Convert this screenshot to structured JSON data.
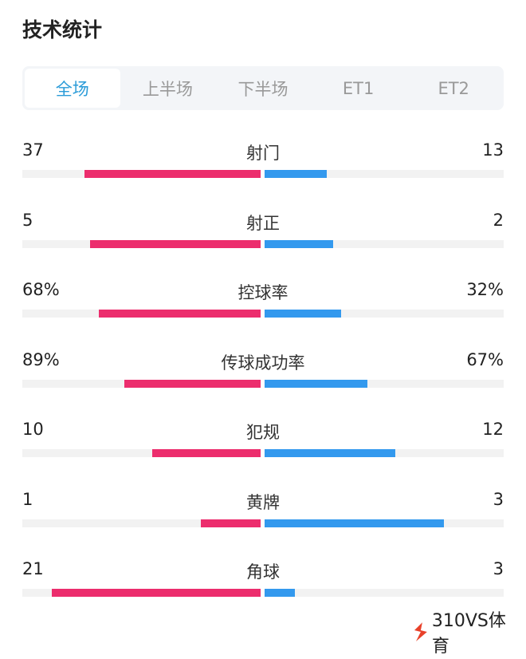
{
  "title": "技术统计",
  "tabs": [
    {
      "label": "全场",
      "active": true
    },
    {
      "label": "上半场",
      "active": false
    },
    {
      "label": "下半场",
      "active": false
    },
    {
      "label": "ET1",
      "active": false
    },
    {
      "label": "ET2",
      "active": false
    }
  ],
  "stats": [
    {
      "label": "射门",
      "home": "37",
      "away": "13",
      "home_value": 37,
      "away_value": 13
    },
    {
      "label": "射正",
      "home": "5",
      "away": "2",
      "home_value": 5,
      "away_value": 2
    },
    {
      "label": "控球率",
      "home": "68%",
      "away": "32%",
      "home_value": 68,
      "away_value": 32
    },
    {
      "label": "传球成功率",
      "home": "89%",
      "away": "67%",
      "home_value": 89,
      "away_value": 67
    },
    {
      "label": "犯规",
      "home": "10",
      "away": "12",
      "home_value": 10,
      "away_value": 12
    },
    {
      "label": "黄牌",
      "home": "1",
      "away": "3",
      "home_value": 1,
      "away_value": 3
    },
    {
      "label": "角球",
      "home": "21",
      "away": "3",
      "home_value": 21,
      "away_value": 3
    }
  ],
  "colors": {
    "home": "#ec2d6d",
    "away": "#3399ee",
    "active_tab": "#2a9bd8"
  },
  "watermark": "310VS体育"
}
